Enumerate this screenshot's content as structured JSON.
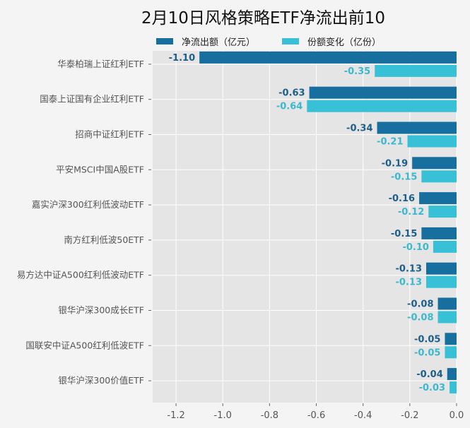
{
  "chart_data": {
    "type": "bar",
    "orientation": "horizontal",
    "title": "2月10日风格策略ETF净流出前10",
    "categories": [
      "华泰柏瑞上证红利ETF",
      "国泰上证国有企业红利ETF",
      "招商中证红利ETF",
      "平安MSCI中国A股ETF",
      "嘉实沪深300红利低波动ETF",
      "南方红利低波50ETF",
      "易方达中证A500红利低波动ETF",
      "银华沪深300成长ETF",
      "国联安中证A500红利低波ETF",
      "银华沪深300价值ETF"
    ],
    "series": [
      {
        "name": "净流出额（亿元）",
        "color": "#176fa0",
        "values": [
          -1.1,
          -0.63,
          -0.34,
          -0.19,
          -0.16,
          -0.15,
          -0.13,
          -0.08,
          -0.05,
          -0.04
        ],
        "labels": [
          "-1.10",
          "-0.63",
          "-0.34",
          "-0.19",
          "-0.16",
          "-0.15",
          "-0.13",
          "-0.08",
          "-0.05",
          "-0.04"
        ]
      },
      {
        "name": "份额变化（亿份）",
        "color": "#38c0d6",
        "values": [
          -0.35,
          -0.64,
          -0.21,
          -0.15,
          -0.12,
          -0.1,
          -0.13,
          -0.08,
          -0.05,
          -0.03
        ],
        "labels": [
          "-0.35",
          "-0.64",
          "-0.21",
          "-0.15",
          "-0.12",
          "-0.10",
          "-0.13",
          "-0.08",
          "-0.05",
          "-0.03"
        ]
      }
    ],
    "xlim": [
      -1.3,
      0
    ],
    "xticks": [
      "-1.2",
      "-1.0",
      "-0.8",
      "-0.6",
      "-0.4",
      "-0.2",
      "0.0"
    ],
    "xtick_values": [
      -1.2,
      -1.0,
      -0.8,
      -0.6,
      -0.4,
      -0.2,
      0.0
    ],
    "grid": true,
    "legend": "top"
  }
}
